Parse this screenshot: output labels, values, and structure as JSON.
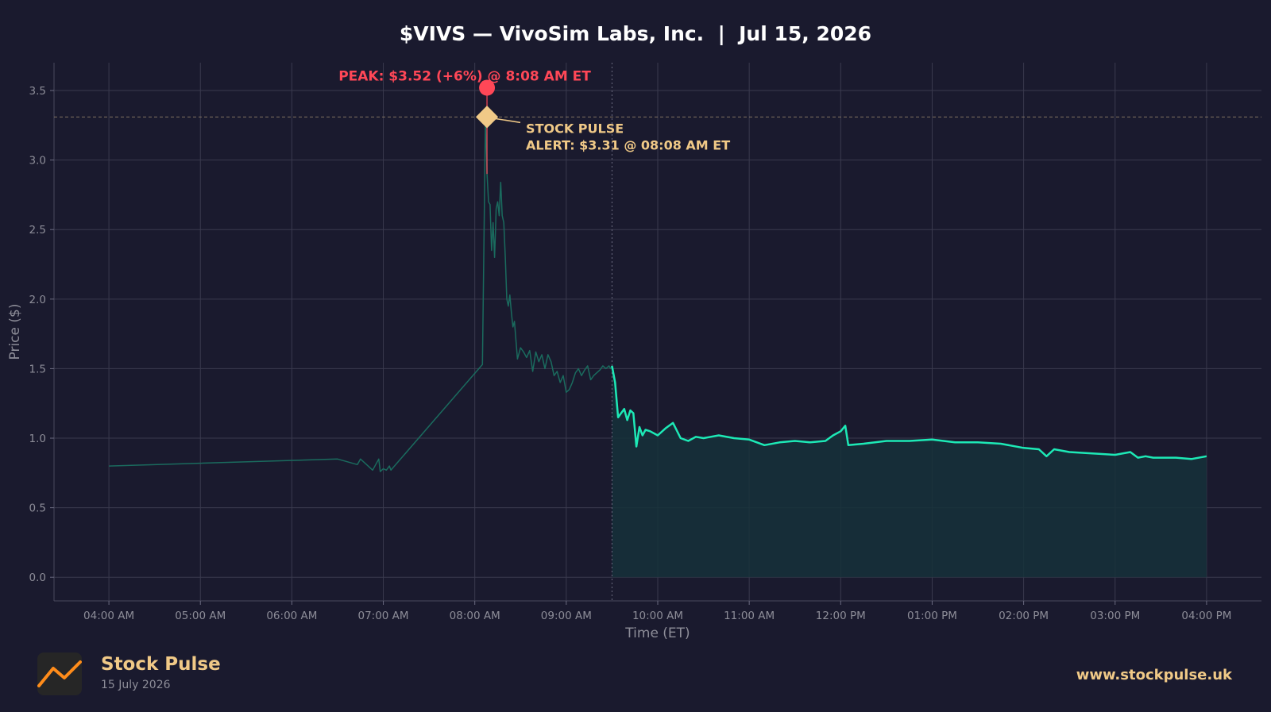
{
  "header": {
    "title": "$VIVS — VivoSim Labs, Inc.  |  Jul 15, 2026"
  },
  "footer": {
    "brand": "Stock Pulse",
    "date": "15 July 2026",
    "url": "www.stockpulse.uk",
    "logo_icon": "rising-line-logo-icon"
  },
  "colors": {
    "background": "#1a1a2e",
    "line": "#1de9b6",
    "premarket_line": "#1a6b5e",
    "fill": "#16313a",
    "peak": "#ff4757",
    "alert": "#f0c987",
    "grid": "#3a3a4e",
    "text": "#8d8d98"
  },
  "chart_data": {
    "type": "line",
    "title": "$VIVS — VivoSim Labs, Inc.  |  Jul 15, 2026",
    "xlabel": "Time (ET)",
    "ylabel": "Price ($)",
    "x_tick_labels": [
      "04:00 AM",
      "05:00 AM",
      "06:00 AM",
      "07:00 AM",
      "08:00 AM",
      "09:00 AM",
      "10:00 AM",
      "11:00 AM",
      "12:00 PM",
      "01:00 PM",
      "02:00 PM",
      "03:00 PM",
      "04:00 PM"
    ],
    "x_ticks": [
      "04:00",
      "05:00",
      "06:00",
      "07:00",
      "08:00",
      "09:00",
      "10:00",
      "11:00",
      "12:00",
      "13:00",
      "14:00",
      "15:00",
      "16:00"
    ],
    "y_ticks": [
      0.0,
      0.5,
      1.0,
      1.5,
      2.0,
      2.5,
      3.0,
      3.5
    ],
    "y_tick_labels": [
      "0.0",
      "0.5",
      "1.0",
      "1.5",
      "2.0",
      "2.5",
      "3.0",
      "3.5"
    ],
    "xlim": [
      "03:24",
      "16:36"
    ],
    "ylim": [
      -0.17,
      3.7
    ],
    "grid": true,
    "market_open": "09:30",
    "alert_level": 3.31,
    "series": [
      {
        "segment": "premarket",
        "x": [
          "04:00",
          "06:30",
          "06:43",
          "06:45",
          "06:50",
          "06:53",
          "06:57",
          "06:58",
          "07:00",
          "07:02",
          "07:04",
          "07:05",
          "08:05",
          "08:06",
          "08:07",
          "08:08",
          "08:09",
          "08:10",
          "08:11",
          "08:12",
          "08:13",
          "08:14",
          "08:15",
          "08:16",
          "08:17",
          "08:18",
          "08:19",
          "08:20",
          "08:21",
          "08:22",
          "08:23",
          "08:24",
          "08:25",
          "08:26",
          "08:28",
          "08:30",
          "08:32",
          "08:34",
          "08:36",
          "08:38",
          "08:40",
          "08:42",
          "08:44",
          "08:46",
          "08:48",
          "08:50",
          "08:52",
          "08:54",
          "08:56",
          "08:58",
          "09:00",
          "09:02",
          "09:04",
          "09:06",
          "09:08",
          "09:10",
          "09:12",
          "09:14",
          "09:16",
          "09:18",
          "09:20",
          "09:22",
          "09:24",
          "09:26",
          "09:28",
          "09:29",
          "09:30"
        ],
        "y": [
          0.8,
          0.85,
          0.81,
          0.85,
          0.8,
          0.77,
          0.85,
          0.76,
          0.78,
          0.77,
          0.8,
          0.77,
          1.53,
          2.4,
          3.31,
          2.9,
          2.7,
          2.68,
          2.35,
          2.55,
          2.3,
          2.65,
          2.7,
          2.6,
          2.84,
          2.6,
          2.55,
          2.3,
          2.0,
          1.95,
          2.03,
          1.9,
          1.8,
          1.84,
          1.57,
          1.65,
          1.62,
          1.58,
          1.63,
          1.48,
          1.62,
          1.55,
          1.6,
          1.5,
          1.6,
          1.55,
          1.45,
          1.48,
          1.4,
          1.45,
          1.33,
          1.35,
          1.4,
          1.47,
          1.5,
          1.45,
          1.49,
          1.52,
          1.42,
          1.45,
          1.47,
          1.49,
          1.52,
          1.5,
          1.52,
          1.5,
          1.52
        ]
      },
      {
        "segment": "regular",
        "x": [
          "09:30",
          "09:32",
          "09:34",
          "09:36",
          "09:38",
          "09:40",
          "09:42",
          "09:44",
          "09:46",
          "09:48",
          "09:50",
          "09:52",
          "09:55",
          "10:00",
          "10:05",
          "10:10",
          "10:15",
          "10:20",
          "10:25",
          "10:30",
          "10:40",
          "10:50",
          "11:00",
          "11:10",
          "11:20",
          "11:30",
          "11:40",
          "11:50",
          "11:55",
          "12:00",
          "12:03",
          "12:05",
          "12:15",
          "12:30",
          "12:45",
          "13:00",
          "13:15",
          "13:30",
          "13:45",
          "14:00",
          "14:10",
          "14:15",
          "14:20",
          "14:30",
          "14:45",
          "15:00",
          "15:10",
          "15:15",
          "15:20",
          "15:25",
          "15:30",
          "15:40",
          "15:50",
          "16:00"
        ],
        "y": [
          1.52,
          1.4,
          1.15,
          1.18,
          1.21,
          1.13,
          1.2,
          1.18,
          0.94,
          1.08,
          1.02,
          1.06,
          1.05,
          1.02,
          1.07,
          1.11,
          1.0,
          0.98,
          1.01,
          1.0,
          1.02,
          1.0,
          0.99,
          0.95,
          0.97,
          0.98,
          0.97,
          0.98,
          1.02,
          1.05,
          1.09,
          0.95,
          0.96,
          0.98,
          0.98,
          0.99,
          0.97,
          0.97,
          0.96,
          0.93,
          0.92,
          0.87,
          0.92,
          0.9,
          0.89,
          0.88,
          0.9,
          0.86,
          0.87,
          0.86,
          0.86,
          0.86,
          0.85,
          0.87
        ]
      }
    ],
    "annotations": [
      {
        "type": "peak",
        "x": "08:08",
        "y": 3.52,
        "label": "PEAK: $3.52 (+6%) @ 8:08 AM ET"
      },
      {
        "type": "alert",
        "x": "08:08",
        "y": 3.31,
        "label_line1": "STOCK PULSE",
        "label_line2": "ALERT: $3.31 @ 08:08 AM ET"
      }
    ]
  }
}
